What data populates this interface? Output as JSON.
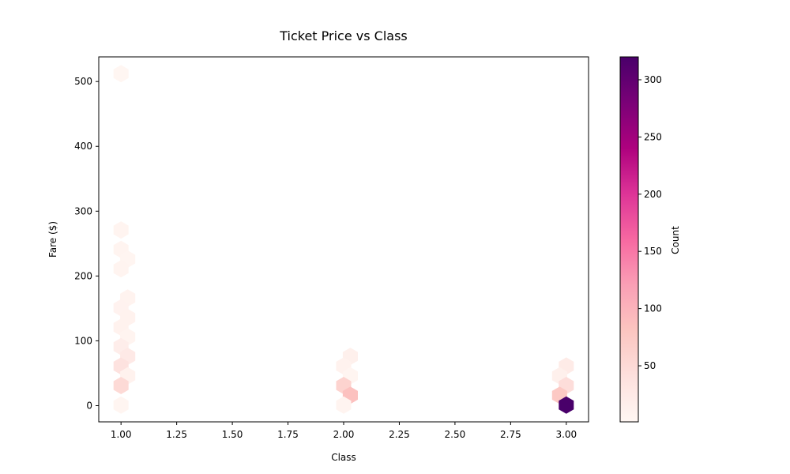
{
  "chart_data": {
    "type": "heatmap",
    "subtype": "hexbin",
    "title": "Ticket Price vs Class",
    "xlabel": "Class",
    "ylabel": "Fare ($)",
    "xlim": [
      0.9,
      3.1
    ],
    "ylim": [
      -25,
      538
    ],
    "xticks": [
      1.0,
      1.25,
      1.5,
      1.75,
      2.0,
      2.25,
      2.5,
      2.75,
      3.0
    ],
    "xtick_labels": [
      "1.00",
      "1.25",
      "1.50",
      "1.75",
      "2.00",
      "2.25",
      "2.50",
      "2.75",
      "3.00"
    ],
    "yticks": [
      0,
      100,
      200,
      300,
      400,
      500
    ],
    "ytick_labels": [
      "0",
      "100",
      "200",
      "300",
      "400",
      "500"
    ],
    "colorbar": {
      "label": "Count",
      "colormap": "RdPu",
      "range": [
        1,
        320
      ],
      "ticks": [
        50,
        100,
        150,
        200,
        250,
        300
      ],
      "tick_labels": [
        "50",
        "100",
        "150",
        "200",
        "250",
        "300"
      ]
    },
    "grid": false,
    "hexbins": [
      {
        "x": 1.0,
        "y": 512,
        "count": 3
      },
      {
        "x": 1.0,
        "y": 271,
        "count": 6
      },
      {
        "x": 1.0,
        "y": 241,
        "count": 6
      },
      {
        "x": 1.03,
        "y": 226,
        "count": 4
      },
      {
        "x": 1.0,
        "y": 211,
        "count": 6
      },
      {
        "x": 1.03,
        "y": 166,
        "count": 8
      },
      {
        "x": 1.0,
        "y": 151,
        "count": 9
      },
      {
        "x": 1.03,
        "y": 136,
        "count": 10
      },
      {
        "x": 1.0,
        "y": 121,
        "count": 10
      },
      {
        "x": 1.03,
        "y": 106,
        "count": 7
      },
      {
        "x": 1.0,
        "y": 91,
        "count": 18
      },
      {
        "x": 1.03,
        "y": 76,
        "count": 25
      },
      {
        "x": 1.0,
        "y": 61,
        "count": 38
      },
      {
        "x": 1.03,
        "y": 46,
        "count": 10
      },
      {
        "x": 1.0,
        "y": 31,
        "count": 50
      },
      {
        "x": 1.0,
        "y": 1,
        "count": 5
      },
      {
        "x": 2.03,
        "y": 76,
        "count": 14
      },
      {
        "x": 2.0,
        "y": 61,
        "count": 10
      },
      {
        "x": 2.03,
        "y": 46,
        "count": 5
      },
      {
        "x": 2.0,
        "y": 31,
        "count": 60
      },
      {
        "x": 2.03,
        "y": 16,
        "count": 85
      },
      {
        "x": 2.0,
        "y": 1,
        "count": 6
      },
      {
        "x": 3.0,
        "y": 61,
        "count": 22
      },
      {
        "x": 2.97,
        "y": 46,
        "count": 14
      },
      {
        "x": 3.0,
        "y": 31,
        "count": 45
      },
      {
        "x": 2.97,
        "y": 16,
        "count": 75
      },
      {
        "x": 3.0,
        "y": 1,
        "count": 320
      }
    ]
  }
}
